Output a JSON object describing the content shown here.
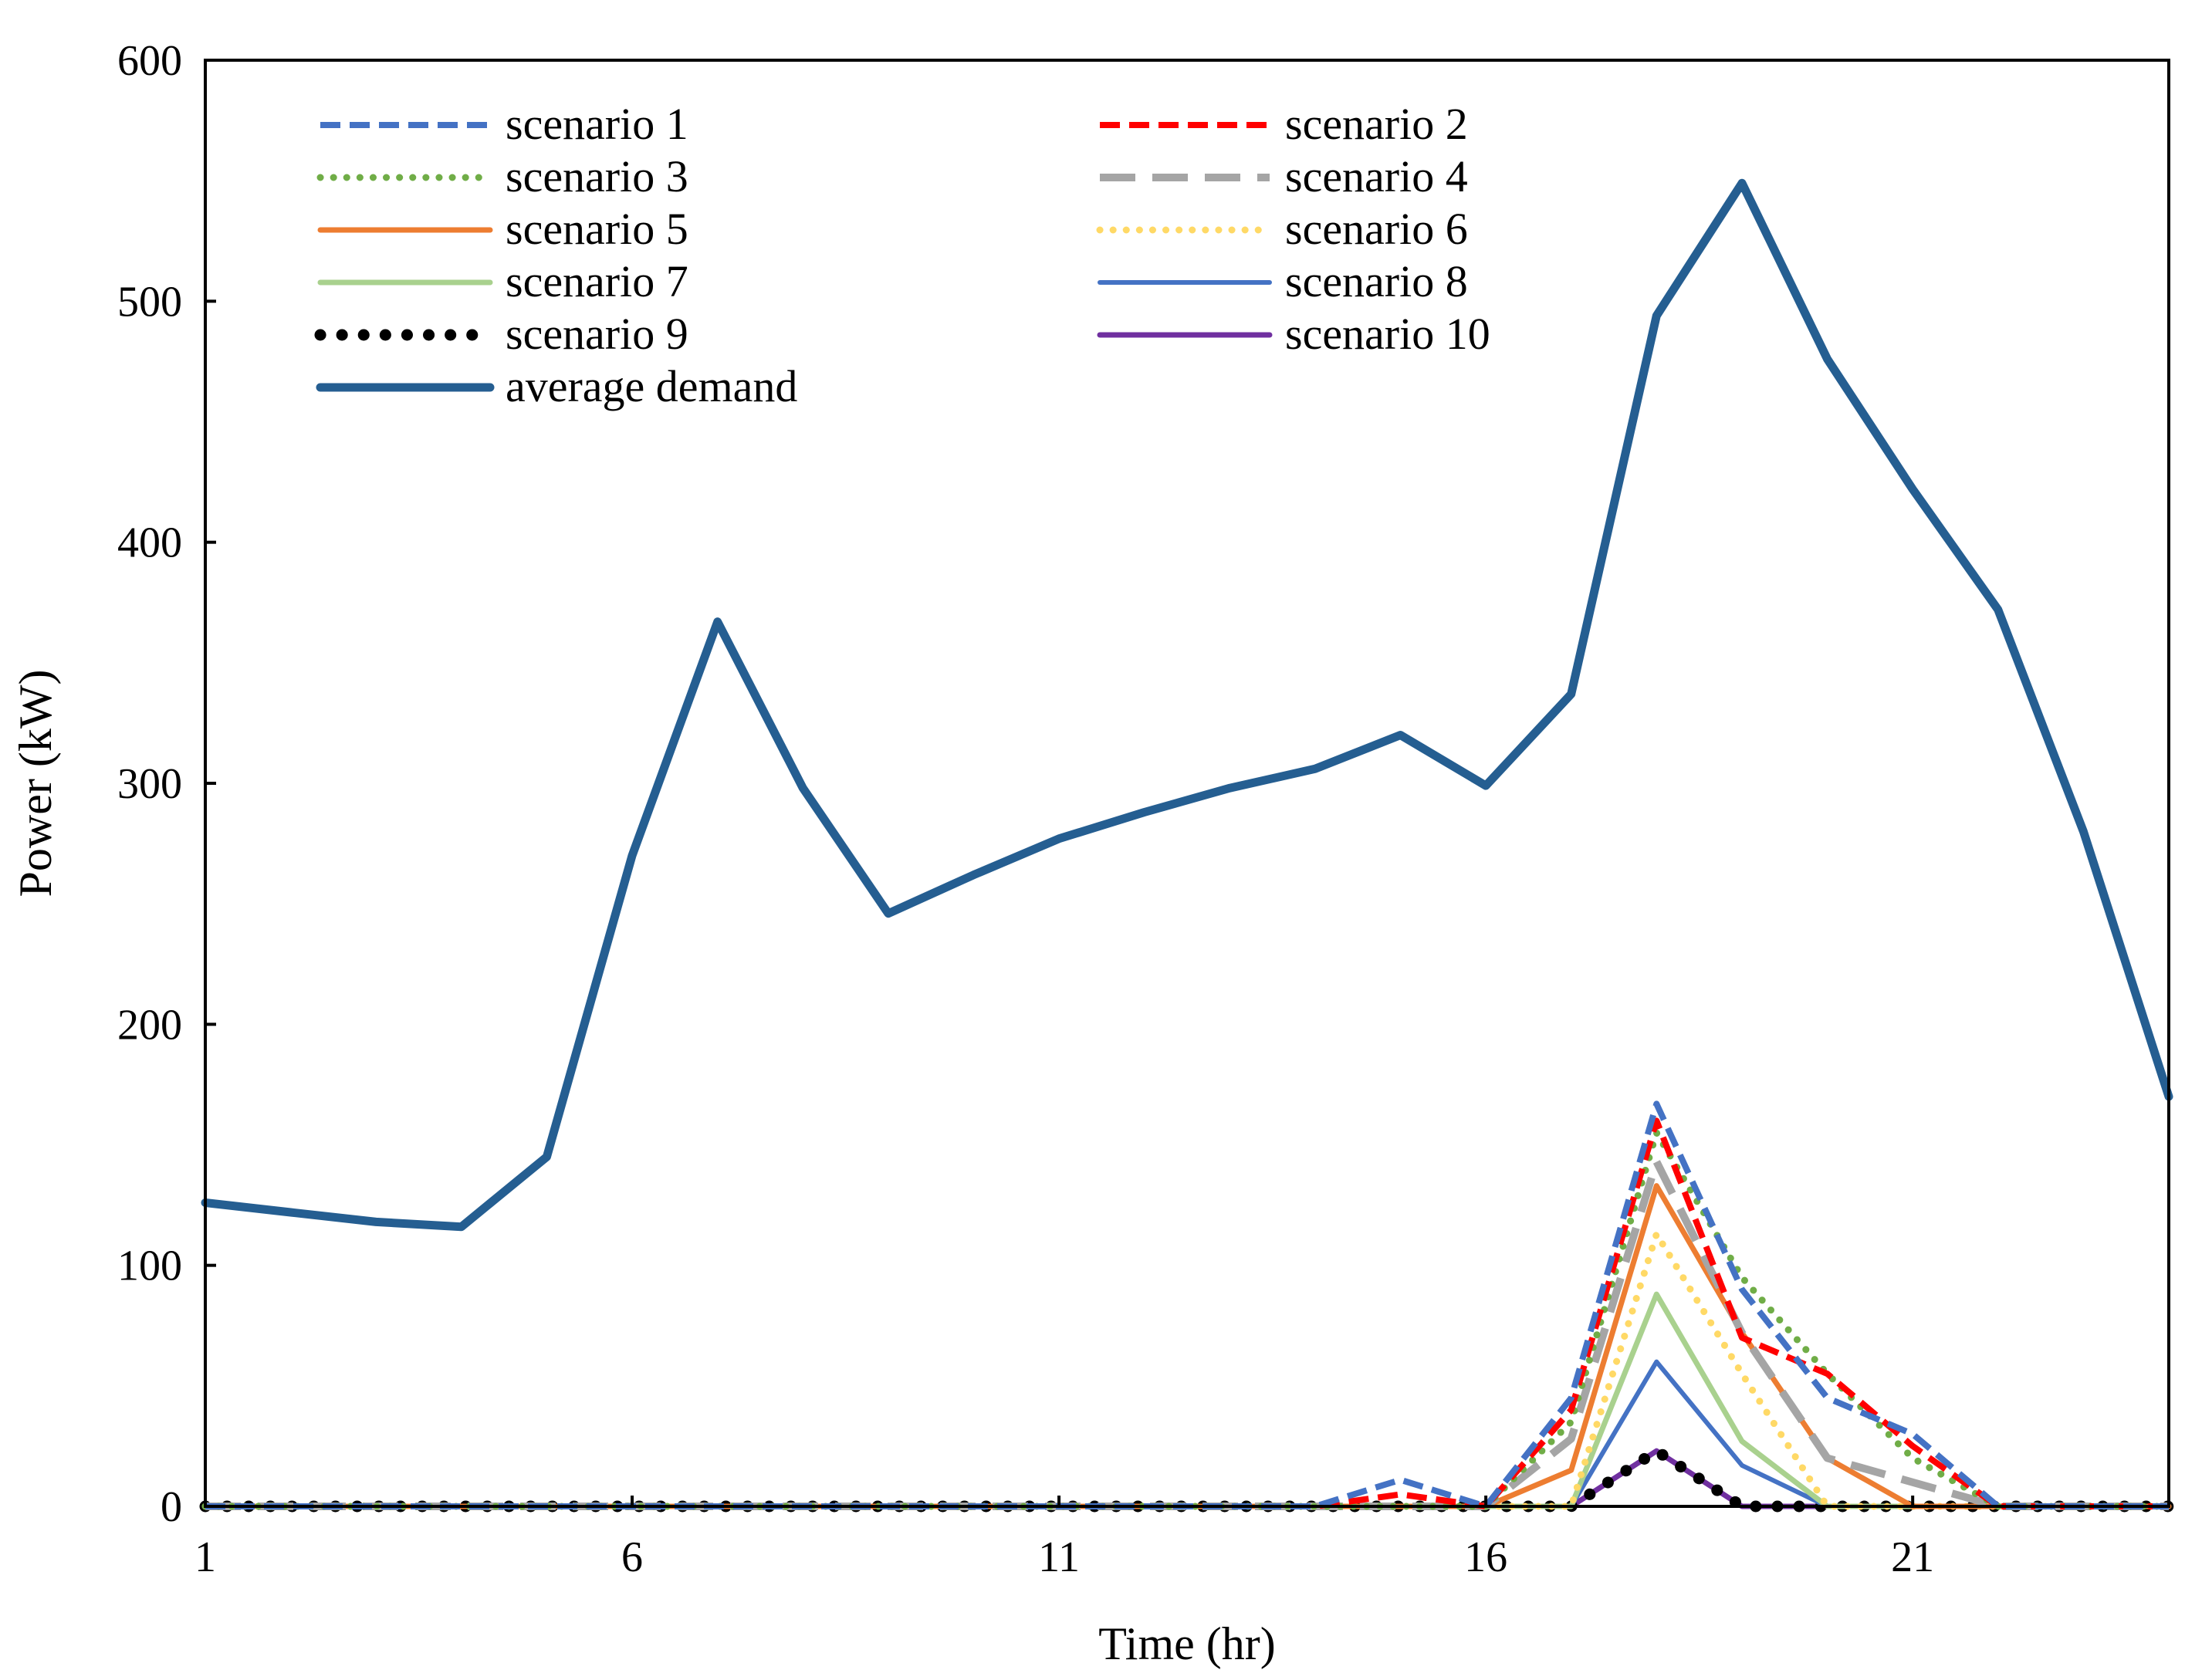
{
  "chart_data": {
    "type": "line",
    "title": "",
    "xlabel": "Time (hr)",
    "ylabel": "Power (kW)",
    "xlim": [
      1,
      24
    ],
    "ylim": [
      0,
      600
    ],
    "x_ticks": [
      1,
      6,
      11,
      16,
      21
    ],
    "y_ticks": [
      0,
      100,
      200,
      300,
      400,
      500,
      600
    ],
    "grid": false,
    "legend_position": "top-left, two columns",
    "x": [
      1,
      2,
      3,
      4,
      5,
      6,
      7,
      8,
      9,
      10,
      11,
      12,
      13,
      14,
      15,
      16,
      17,
      18,
      19,
      20,
      21,
      22,
      23,
      24
    ],
    "series": [
      {
        "name": "scenario 1",
        "color": "#4472C4",
        "style": "dash",
        "values": [
          0,
          0,
          0,
          0,
          0,
          0,
          0,
          0,
          0,
          0,
          0,
          0,
          0,
          0,
          11,
          0,
          45,
          167,
          90,
          45,
          30,
          0,
          0,
          0
        ]
      },
      {
        "name": "scenario 2",
        "color": "#FF0000",
        "style": "dash",
        "values": [
          0,
          0,
          0,
          0,
          0,
          0,
          0,
          0,
          0,
          0,
          0,
          0,
          0,
          0,
          5,
          0,
          40,
          160,
          70,
          55,
          25,
          0,
          0,
          0
        ]
      },
      {
        "name": "scenario 3",
        "color": "#70AD47",
        "style": "dot",
        "values": [
          0,
          0,
          0,
          0,
          0,
          0,
          0,
          0,
          0,
          0,
          0,
          0,
          0,
          0,
          0,
          0,
          35,
          155,
          95,
          55,
          20,
          0,
          0,
          0
        ]
      },
      {
        "name": "scenario 4",
        "color": "#A5A5A5",
        "style": "longdash",
        "values": [
          0,
          0,
          0,
          0,
          0,
          0,
          0,
          0,
          0,
          0,
          0,
          0,
          0,
          0,
          0,
          0,
          28,
          143,
          72,
          20,
          10,
          0,
          0,
          0
        ]
      },
      {
        "name": "scenario 5",
        "color": "#ED7D31",
        "style": "solid",
        "values": [
          0,
          0,
          0,
          0,
          0,
          0,
          0,
          0,
          0,
          0,
          0,
          0,
          0,
          0,
          0,
          0,
          15,
          133,
          72,
          20,
          0,
          0,
          0,
          0
        ]
      },
      {
        "name": "scenario 6",
        "color": "#FFD966",
        "style": "dot",
        "values": [
          0,
          0,
          0,
          0,
          0,
          0,
          0,
          0,
          0,
          0,
          0,
          0,
          0,
          0,
          0,
          0,
          0,
          113,
          55,
          0,
          0,
          0,
          0,
          0
        ]
      },
      {
        "name": "scenario 7",
        "color": "#A9D18E",
        "style": "solid",
        "values": [
          0,
          0,
          0,
          0,
          0,
          0,
          0,
          0,
          0,
          0,
          0,
          0,
          0,
          0,
          0,
          0,
          0,
          88,
          27,
          0,
          0,
          0,
          0,
          0
        ]
      },
      {
        "name": "scenario 8",
        "color": "#4472C4",
        "style": "thin",
        "values": [
          0,
          0,
          0,
          0,
          0,
          0,
          0,
          0,
          0,
          0,
          0,
          0,
          0,
          0,
          0,
          0,
          0,
          60,
          17,
          0,
          0,
          0,
          0,
          0
        ]
      },
      {
        "name": "scenario 9",
        "color": "#000000",
        "style": "bigdot",
        "values": [
          0,
          0,
          0,
          0,
          0,
          0,
          0,
          0,
          0,
          0,
          0,
          0,
          0,
          0,
          0,
          0,
          0,
          23,
          0,
          0,
          0,
          0,
          0,
          0
        ]
      },
      {
        "name": "scenario 10",
        "color": "#7030A0",
        "style": "solid",
        "values": [
          0,
          0,
          0,
          0,
          0,
          0,
          0,
          0,
          0,
          0,
          0,
          0,
          0,
          0,
          0,
          0,
          0,
          23,
          0,
          0,
          0,
          0,
          0,
          0
        ]
      },
      {
        "name": "average demand",
        "color": "#255E91",
        "style": "thick",
        "values": [
          126,
          122,
          118,
          116,
          145,
          270,
          367,
          298,
          246,
          262,
          277,
          288,
          298,
          306,
          320,
          299,
          337,
          494,
          549,
          476,
          422,
          372,
          280,
          170
        ]
      }
    ]
  }
}
